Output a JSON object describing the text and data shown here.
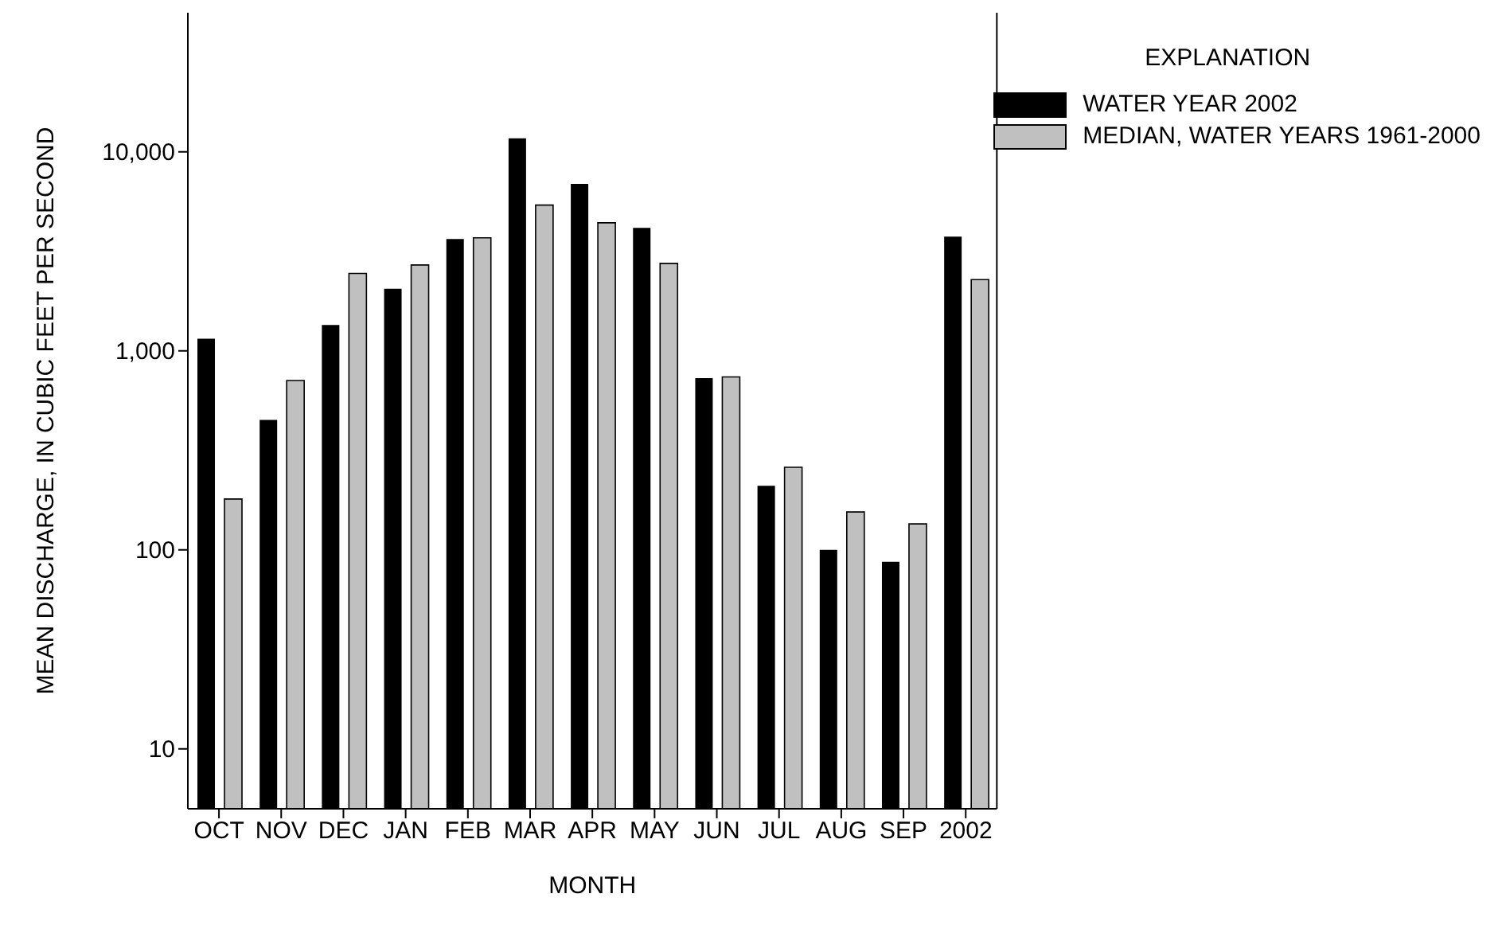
{
  "chart_data": {
    "type": "bar",
    "xlabel": "MONTH",
    "ylabel": "MEAN DISCHARGE, IN CUBIC FEET PER SECOND",
    "legend_title": "EXPLANATION",
    "categories": [
      "OCT",
      "NOV",
      "DEC",
      "JAN",
      "FEB",
      "MAR",
      "APR",
      "MAY",
      "JUN",
      "JUL",
      "AUG",
      "SEP",
      "2002"
    ],
    "series": [
      {
        "name": "WATER YEAR 2002",
        "color": "#000000",
        "values": [
          1150,
          450,
          1350,
          2050,
          3650,
          11700,
          6900,
          4150,
          730,
          210,
          100,
          87,
          3750
        ]
      },
      {
        "name": "MEDIAN, WATER YEARS 1961-2000",
        "color": "#c0c0c0",
        "values": [
          180,
          710,
          2450,
          2700,
          3700,
          5400,
          4400,
          2750,
          740,
          260,
          155,
          135,
          2280
        ]
      }
    ],
    "log": "y",
    "ylim": [
      5,
      50000
    ],
    "yticks": [
      {
        "value": 10,
        "label": "10"
      },
      {
        "value": 100,
        "label": "100"
      },
      {
        "value": 1000,
        "label": "1,000"
      },
      {
        "value": 10000,
        "label": "10,000"
      }
    ],
    "legend": "top right",
    "grid": false
  }
}
